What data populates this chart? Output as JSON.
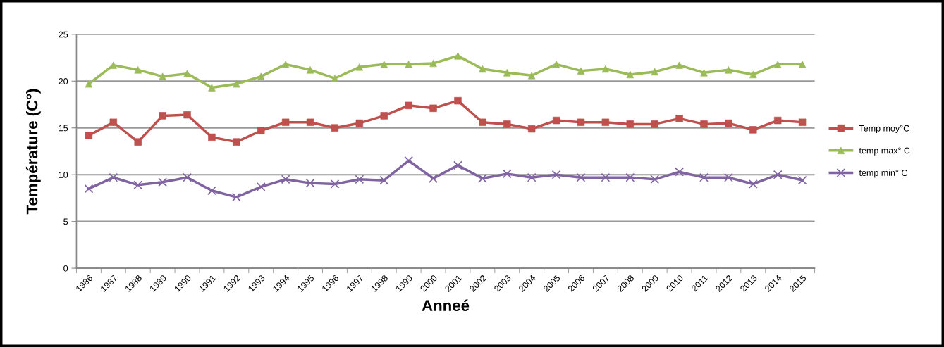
{
  "chart_data": {
    "type": "line",
    "xlabel": "Anneé",
    "ylabel": "Température (C°)",
    "categories": [
      "1986",
      "1987",
      "1988",
      "1989",
      "1990",
      "1991",
      "1992",
      "1993",
      "1994",
      "1995",
      "1996",
      "1997",
      "1998",
      "1999",
      "2000",
      "2001",
      "2002",
      "2003",
      "2004",
      "2005",
      "2006",
      "2007",
      "2008",
      "2009",
      "2010",
      "2011",
      "2012",
      "2013",
      "2014",
      "2015"
    ],
    "series": [
      {
        "name": "Temp moy°C",
        "color": "#c0504d",
        "marker": "square",
        "values": [
          14.2,
          15.6,
          13.5,
          16.3,
          16.4,
          14.0,
          13.5,
          14.7,
          15.6,
          15.6,
          15.0,
          15.5,
          16.3,
          17.4,
          17.1,
          17.9,
          15.6,
          15.4,
          14.9,
          15.8,
          15.6,
          15.6,
          15.4,
          15.4,
          16.0,
          15.4,
          15.5,
          14.8,
          15.8,
          15.6
        ]
      },
      {
        "name": "temp max° C",
        "color": "#9bbb59",
        "marker": "triangle",
        "values": [
          19.7,
          21.7,
          21.2,
          20.5,
          20.8,
          19.3,
          19.7,
          20.5,
          21.8,
          21.2,
          20.3,
          21.5,
          21.8,
          21.8,
          21.9,
          22.7,
          21.3,
          20.9,
          20.6,
          21.8,
          21.1,
          21.3,
          20.7,
          21.0,
          21.7,
          20.9,
          21.2,
          20.7,
          21.8,
          21.8
        ]
      },
      {
        "name": "temp min° C",
        "color": "#8064a2",
        "marker": "cross",
        "values": [
          8.5,
          9.7,
          8.9,
          9.2,
          9.7,
          8.3,
          7.6,
          8.7,
          9.5,
          9.1,
          9.0,
          9.5,
          9.4,
          11.5,
          9.6,
          11.0,
          9.6,
          10.1,
          9.7,
          10.0,
          9.7,
          9.7,
          9.7,
          9.5,
          10.3,
          9.7,
          9.7,
          9.0,
          10.0,
          9.4
        ]
      }
    ],
    "ylim": [
      0,
      25
    ],
    "yticks": [
      0,
      5,
      10,
      15,
      20,
      25
    ],
    "grid": "y",
    "legend": "right",
    "line_style": "solid"
  }
}
